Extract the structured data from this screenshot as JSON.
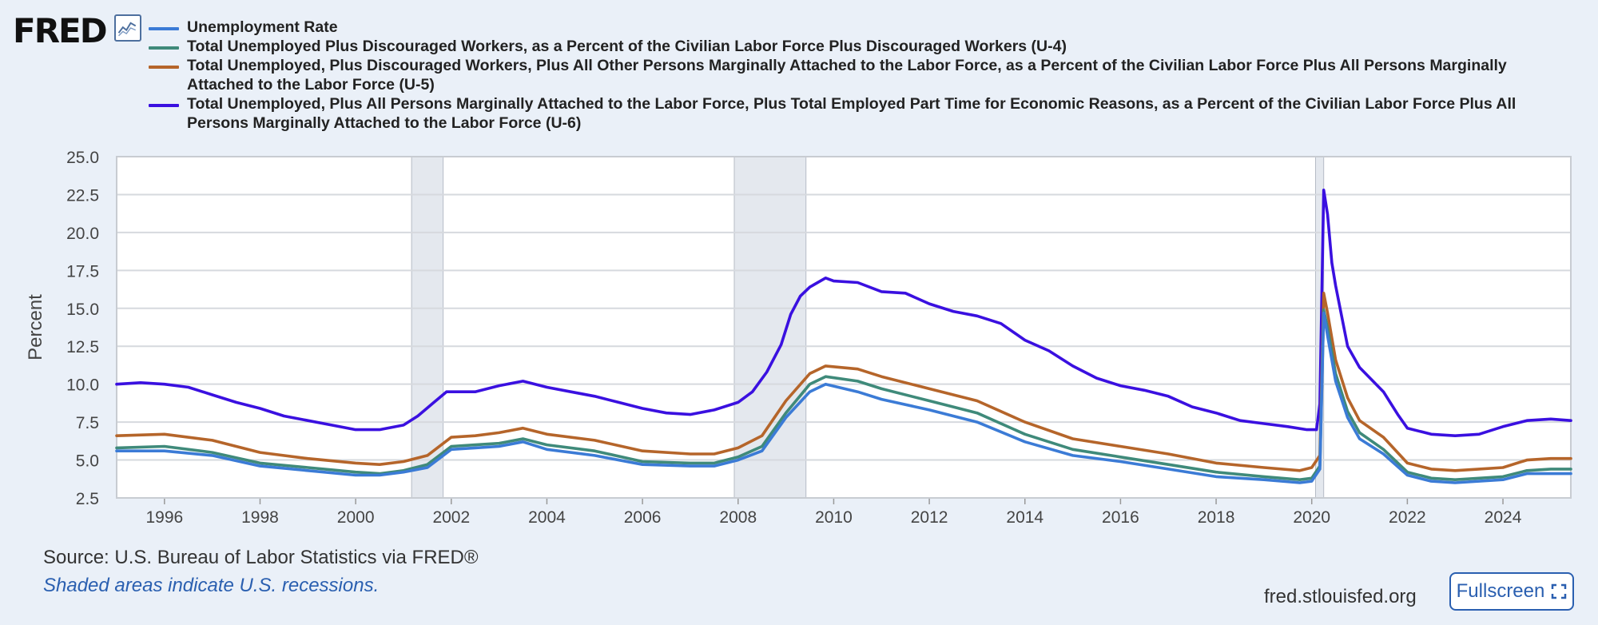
{
  "logo": {
    "text": "FRED"
  },
  "footer": {
    "source": "Source: U.S. Bureau of Labor Statistics via FRED®",
    "recession_note": "Shaded areas indicate U.S. recessions.",
    "site": "fred.stlouisfed.org",
    "fullscreen_label": "Fullscreen"
  },
  "colors": {
    "u3": "#3b7bd6",
    "u4": "#3f8a7a",
    "u5": "#b5652a",
    "u6": "#3a10e0",
    "recession": "#e4e8ee"
  },
  "chart_data": {
    "type": "line",
    "title": "",
    "xlabel": "",
    "ylabel": "Percent",
    "xlim": [
      1995.0,
      2025.42
    ],
    "ylim": [
      2.5,
      25.0
    ],
    "yticks": [
      "2.5",
      "5.0",
      "7.5",
      "10.0",
      "12.5",
      "15.0",
      "17.5",
      "20.0",
      "22.5",
      "25.0"
    ],
    "xticks": [
      "1996",
      "1998",
      "2000",
      "2002",
      "2004",
      "2006",
      "2008",
      "2010",
      "2012",
      "2014",
      "2016",
      "2018",
      "2020",
      "2022",
      "2024"
    ],
    "grid": true,
    "legend_position": "top",
    "recessions": [
      [
        2001.17,
        2001.83
      ],
      [
        2007.92,
        2009.42
      ],
      [
        2020.08,
        2020.25
      ]
    ],
    "series": [
      {
        "name": "Unemployment Rate",
        "color_key": "u3",
        "x": [
          1995.0,
          1996.0,
          1997.0,
          1998.0,
          1999.0,
          2000.0,
          2000.5,
          2001.0,
          2001.5,
          2002.0,
          2002.5,
          2003.0,
          2003.5,
          2004.0,
          2005.0,
          2006.0,
          2007.0,
          2007.5,
          2008.0,
          2008.5,
          2009.0,
          2009.5,
          2009.83,
          2010.5,
          2011.0,
          2012.0,
          2013.0,
          2014.0,
          2015.0,
          2016.0,
          2017.0,
          2018.0,
          2019.0,
          2019.75,
          2020.0,
          2020.17,
          2020.25,
          2020.33,
          2020.5,
          2020.75,
          2021.0,
          2021.5,
          2022.0,
          2022.5,
          2023.0,
          2023.5,
          2024.0,
          2024.5,
          2025.0,
          2025.42
        ],
        "y": [
          5.6,
          5.6,
          5.3,
          4.6,
          4.3,
          4.0,
          4.0,
          4.2,
          4.5,
          5.7,
          5.8,
          5.9,
          6.2,
          5.7,
          5.3,
          4.7,
          4.6,
          4.6,
          5.0,
          5.6,
          7.8,
          9.5,
          10.0,
          9.5,
          9.0,
          8.3,
          7.5,
          6.2,
          5.3,
          4.9,
          4.4,
          3.9,
          3.7,
          3.5,
          3.6,
          4.4,
          14.7,
          13.2,
          10.2,
          7.8,
          6.4,
          5.4,
          4.0,
          3.6,
          3.5,
          3.6,
          3.7,
          4.1,
          4.1,
          4.1
        ]
      },
      {
        "name": "Total Unemployed Plus Discouraged Workers, as a Percent of the Civilian Labor Force Plus Discouraged Workers (U-4)",
        "color_key": "u4",
        "x": [
          1995.0,
          1996.0,
          1997.0,
          1998.0,
          1999.0,
          2000.0,
          2000.5,
          2001.0,
          2001.5,
          2002.0,
          2002.5,
          2003.0,
          2003.5,
          2004.0,
          2005.0,
          2006.0,
          2007.0,
          2007.5,
          2008.0,
          2008.5,
          2009.0,
          2009.5,
          2009.83,
          2010.5,
          2011.0,
          2012.0,
          2013.0,
          2014.0,
          2015.0,
          2016.0,
          2017.0,
          2018.0,
          2019.0,
          2019.75,
          2020.0,
          2020.17,
          2020.25,
          2020.33,
          2020.5,
          2020.75,
          2021.0,
          2021.5,
          2022.0,
          2022.5,
          2023.0,
          2023.5,
          2024.0,
          2024.5,
          2025.0,
          2025.42
        ],
        "y": [
          5.8,
          5.9,
          5.5,
          4.8,
          4.5,
          4.2,
          4.1,
          4.3,
          4.7,
          5.9,
          6.0,
          6.1,
          6.4,
          6.0,
          5.6,
          4.9,
          4.8,
          4.8,
          5.2,
          5.9,
          8.1,
          10.0,
          10.5,
          10.2,
          9.7,
          8.9,
          8.1,
          6.7,
          5.7,
          5.2,
          4.7,
          4.2,
          3.9,
          3.7,
          3.8,
          4.6,
          14.9,
          13.7,
          10.7,
          8.2,
          6.8,
          5.7,
          4.2,
          3.8,
          3.7,
          3.8,
          3.9,
          4.3,
          4.4,
          4.4
        ]
      },
      {
        "name": "Total Unemployed, Plus Discouraged Workers, Plus All Other Persons Marginally Attached to the Labor Force, as a Percent of the Civilian Labor Force Plus All Persons Marginally Attached to the Labor Force (U-5)",
        "color_key": "u5",
        "x": [
          1995.0,
          1996.0,
          1997.0,
          1998.0,
          1999.0,
          2000.0,
          2000.5,
          2001.0,
          2001.5,
          2002.0,
          2002.5,
          2003.0,
          2003.5,
          2004.0,
          2005.0,
          2006.0,
          2007.0,
          2007.5,
          2008.0,
          2008.5,
          2009.0,
          2009.5,
          2009.83,
          2010.5,
          2011.0,
          2012.0,
          2013.0,
          2014.0,
          2015.0,
          2016.0,
          2017.0,
          2018.0,
          2019.0,
          2019.75,
          2020.0,
          2020.17,
          2020.25,
          2020.33,
          2020.5,
          2020.75,
          2021.0,
          2021.5,
          2022.0,
          2022.5,
          2023.0,
          2023.5,
          2024.0,
          2024.5,
          2025.0,
          2025.42
        ],
        "y": [
          6.6,
          6.7,
          6.3,
          5.5,
          5.1,
          4.8,
          4.7,
          4.9,
          5.3,
          6.5,
          6.6,
          6.8,
          7.1,
          6.7,
          6.3,
          5.6,
          5.4,
          5.4,
          5.8,
          6.6,
          8.9,
          10.7,
          11.2,
          11.0,
          10.5,
          9.7,
          8.9,
          7.5,
          6.4,
          5.9,
          5.4,
          4.8,
          4.5,
          4.3,
          4.5,
          5.3,
          16.0,
          14.7,
          11.6,
          9.1,
          7.6,
          6.5,
          4.8,
          4.4,
          4.3,
          4.4,
          4.5,
          5.0,
          5.1,
          5.1
        ]
      },
      {
        "name": "Total Unemployed, Plus All Persons Marginally Attached to the Labor Force, Plus Total Employed Part Time for Economic Reasons, as a Percent of the Civilian Labor Force Plus All Persons Marginally Attached to the Labor Force (U-6)",
        "color_key": "u6",
        "x": [
          1995.0,
          1995.5,
          1996.0,
          1996.5,
          1997.0,
          1997.5,
          1998.0,
          1998.5,
          1999.0,
          1999.5,
          2000.0,
          2000.5,
          2001.0,
          2001.3,
          2001.6,
          2001.9,
          2002.5,
          2003.0,
          2003.5,
          2004.0,
          2004.5,
          2005.0,
          2005.5,
          2006.0,
          2006.5,
          2007.0,
          2007.5,
          2008.0,
          2008.3,
          2008.6,
          2008.9,
          2009.1,
          2009.3,
          2009.5,
          2009.83,
          2010.0,
          2010.5,
          2011.0,
          2011.5,
          2012.0,
          2012.5,
          2013.0,
          2013.5,
          2014.0,
          2014.5,
          2015.0,
          2015.5,
          2016.0,
          2016.5,
          2017.0,
          2017.5,
          2018.0,
          2018.5,
          2019.0,
          2019.5,
          2019.9,
          2020.1,
          2020.17,
          2020.25,
          2020.33,
          2020.42,
          2020.5,
          2020.75,
          2021.0,
          2021.5,
          2021.8,
          2022.0,
          2022.5,
          2023.0,
          2023.5,
          2024.0,
          2024.5,
          2025.0,
          2025.42
        ],
        "y": [
          10.0,
          10.1,
          10.0,
          9.8,
          9.3,
          8.8,
          8.4,
          7.9,
          7.6,
          7.3,
          7.0,
          7.0,
          7.3,
          7.9,
          8.7,
          9.5,
          9.5,
          9.9,
          10.2,
          9.8,
          9.5,
          9.2,
          8.8,
          8.4,
          8.1,
          8.0,
          8.3,
          8.8,
          9.5,
          10.8,
          12.6,
          14.6,
          15.8,
          16.4,
          17.0,
          16.8,
          16.7,
          16.1,
          16.0,
          15.3,
          14.8,
          14.5,
          14.0,
          12.9,
          12.2,
          11.2,
          10.4,
          9.9,
          9.6,
          9.2,
          8.5,
          8.1,
          7.6,
          7.4,
          7.2,
          7.0,
          7.0,
          8.7,
          22.8,
          21.2,
          18.0,
          16.5,
          12.5,
          11.1,
          9.5,
          8.0,
          7.1,
          6.7,
          6.6,
          6.7,
          7.2,
          7.6,
          7.7,
          7.6
        ]
      }
    ]
  }
}
